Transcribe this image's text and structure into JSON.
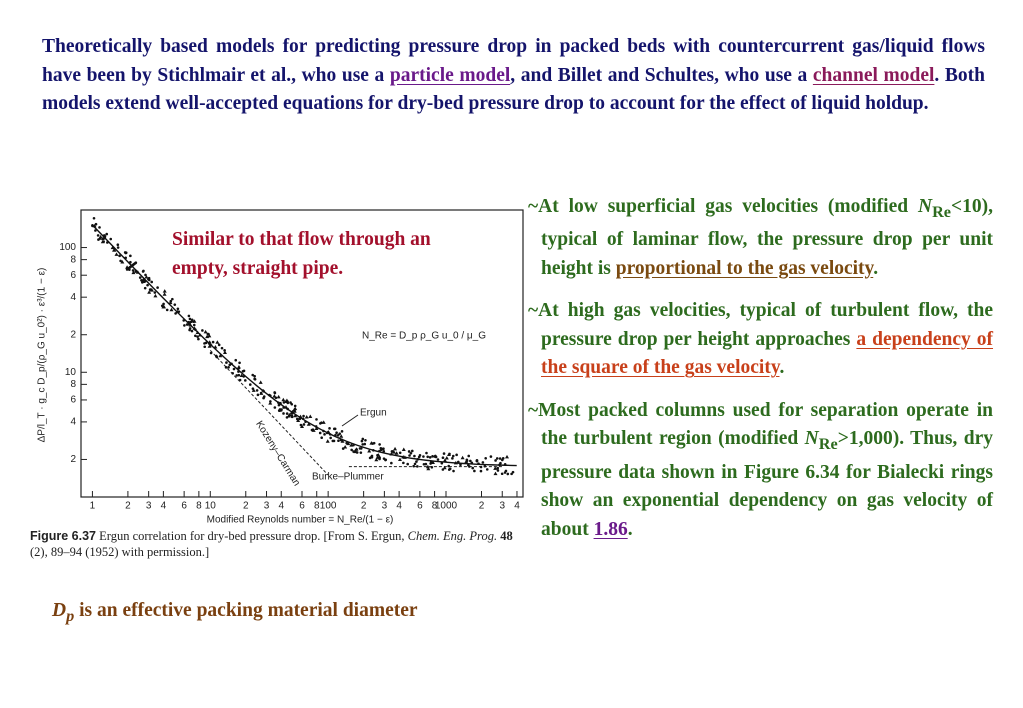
{
  "paragraph": {
    "parts": [
      "Theoretically based models for predicting pressure drop in packed beds with countercurrent gas/liquid flows have been by Stichlmair et al., who use a ",
      "particle model",
      ", and Billet and Schultes, who use a ",
      "channel model",
      ". Both models extend well-accepted equations for dry-bed pressure drop to account for the effect of liquid holdup."
    ]
  },
  "note_pipe": "Similar to that flow through an empty, straight pipe.",
  "note_dp": {
    "symbol": "D",
    "sub": "p",
    "text": " is an effective packing material diameter"
  },
  "bullets": [
    {
      "parts": [
        "~At low superficial gas velocities (modified ",
        "N",
        "Re",
        "<10), typical of laminar flow, the pressure drop per unit height is ",
        "proportional to the gas velocity",
        "."
      ]
    },
    {
      "parts": [
        "~At high gas velocities, typical of turbulent flow, the pressure drop per height approaches ",
        "a dependency of the square of the gas velocity",
        "."
      ]
    },
    {
      "parts": [
        "~Most packed columns used for separation operate in the turbulent region (modified ",
        "N",
        "Re",
        ">1,000). Thus, dry pressure data shown in Figure 6.34 for Bialecki rings show an exponential dependency on gas velocity of about ",
        "1.86",
        "."
      ]
    }
  ],
  "figure": {
    "xlim": [
      0.8,
      4500
    ],
    "ylim": [
      1,
      200
    ],
    "xticks": [
      1,
      2,
      3,
      4,
      6,
      8,
      10,
      {
        "value": 20,
        "label": "2"
      },
      {
        "value": 30,
        "label": "3"
      },
      {
        "value": 40,
        "label": "4"
      },
      {
        "value": 60,
        "label": "6"
      },
      {
        "value": 80,
        "label": "8"
      },
      100,
      {
        "value": 200,
        "label": "2"
      },
      {
        "value": 300,
        "label": "3"
      },
      {
        "value": 400,
        "label": "4"
      },
      {
        "value": 600,
        "label": "6"
      },
      {
        "value": 800,
        "label": "8"
      },
      1000,
      {
        "value": 2000,
        "label": "2"
      },
      {
        "value": 3000,
        "label": "3"
      },
      {
        "value": 4000,
        "label": "4"
      }
    ],
    "yticks": [
      100,
      {
        "value": 80,
        "label": "8"
      },
      {
        "value": 60,
        "label": "6"
      },
      {
        "value": 40,
        "label": "4"
      },
      {
        "value": 20,
        "label": "2"
      },
      10,
      8,
      6,
      4,
      2
    ],
    "x_label": "Modified Reynolds number = N_Re/(1 − ε)",
    "y_label": "ΔP/l_T · g_c D_p/(ρ_G u_0²) · ε³/(1 − ε)",
    "formula": "N_Re = D_p ρ_G u_0 / μ_G",
    "ergun": "Ergun",
    "kozeny": "Kozeny–Carman",
    "burke": "Burke–Plummer",
    "caption": {
      "label": "Figure 6.37",
      "text": " Ergun correlation for dry-bed pressure drop. [From S. Ergun, ",
      "journal": "Chem. Eng. Prog.",
      "vol": " 48",
      "rest": " (2), 89–94 (1952) with permission.]"
    }
  }
}
